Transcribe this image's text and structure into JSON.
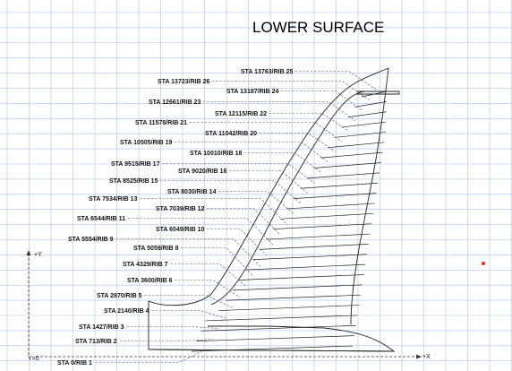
{
  "title": "LOWER SURFACE",
  "axes": {
    "y_label": "+Y",
    "x_label": "+X",
    "origin_label": "Y=0"
  },
  "station_labels": [
    {
      "text": "STA 13763/RIB 25"
    },
    {
      "text": "STA 13723/RIB 26"
    },
    {
      "text": "STA 13187/RIB 24"
    },
    {
      "text": "STA 12661/RIB 23"
    },
    {
      "text": "STA 12115/RIB 22"
    },
    {
      "text": "STA 11578/RIB 21"
    },
    {
      "text": "STA 11042/RIB 20"
    },
    {
      "text": "STA 10505/RIB 19"
    },
    {
      "text": "STA 10010/RIB 18"
    },
    {
      "text": "STA 9515/RIB 17"
    },
    {
      "text": "STA 9020/RIB 16"
    },
    {
      "text": "STA 8525/RIB 15"
    },
    {
      "text": "STA 8030/RIB 14"
    },
    {
      "text": "STA 7534/RIB 13"
    },
    {
      "text": "STA 7039/RIB 12"
    },
    {
      "text": "STA 6544/RIB 11"
    },
    {
      "text": "STA 6049/RIB 10"
    },
    {
      "text": "STA 5554/RIB 9"
    },
    {
      "text": "STA 5059/RIB 8"
    },
    {
      "text": "STA 4329/RIB 7"
    },
    {
      "text": "STA 3600/RIB 6"
    },
    {
      "text": "STA 2870/RIB 5"
    },
    {
      "text": "STA 2140/RIB 4"
    },
    {
      "text": "STA 1427/RIB 3"
    },
    {
      "text": "STA 713/RIB 2"
    },
    {
      "text": "STA 0/RIB 1"
    }
  ],
  "colors": {
    "grid": "#a9c3ea",
    "line": "#222222",
    "leader": "#555555",
    "marker": "#e0301e"
  }
}
